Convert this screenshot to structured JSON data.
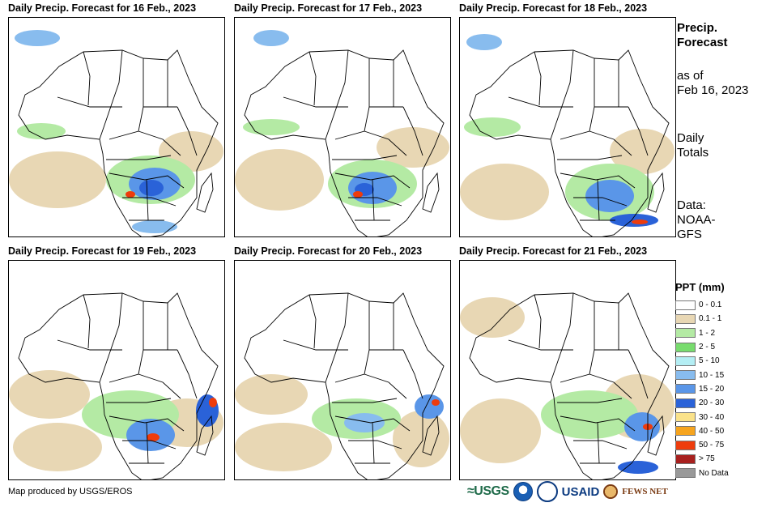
{
  "panels": [
    {
      "title": "Daily Precip. Forecast for 16 Feb., 2023"
    },
    {
      "title": "Daily Precip. Forecast for 17 Feb., 2023"
    },
    {
      "title": "Daily Precip. Forecast for 18 Feb., 2023"
    },
    {
      "title": "Daily Precip. Forecast for 19 Feb., 2023"
    },
    {
      "title": "Daily Precip. Forecast for 20 Feb., 2023"
    },
    {
      "title": "Daily Precip. Forecast for 21 Feb., 2023"
    }
  ],
  "side": {
    "title_line1": "Precip.",
    "title_line2": "Forecast",
    "asof_line1": "as of",
    "asof_line2": "Feb 16, 2023",
    "totals_line1": "Daily",
    "totals_line2": "Totals",
    "data_line1": "Data:",
    "data_line2": "NOAA-",
    "data_line3": "GFS"
  },
  "legend": {
    "title": "PPT (mm)",
    "items": [
      {
        "label": "0 - 0.1",
        "color": "#ffffff"
      },
      {
        "label": "0.1 - 1",
        "color": "#e8d7b4"
      },
      {
        "label": "1 - 2",
        "color": "#b4eaa4"
      },
      {
        "label": "2 - 5",
        "color": "#78dc6e"
      },
      {
        "label": "5 - 10",
        "color": "#b4eef4"
      },
      {
        "label": "10 - 15",
        "color": "#88bcee"
      },
      {
        "label": "15 - 20",
        "color": "#5a96e8"
      },
      {
        "label": "20 - 30",
        "color": "#2a62d8"
      },
      {
        "label": "30 - 40",
        "color": "#fae28a"
      },
      {
        "label": "40 - 50",
        "color": "#f6a41e"
      },
      {
        "label": "50 - 75",
        "color": "#ee3c0c"
      },
      {
        "label": "> 75",
        "color": "#a8201e"
      },
      {
        "label": "No Data",
        "color": "#999999"
      }
    ]
  },
  "credit": "Map produced by USGS/EROS",
  "logos": {
    "usgs": "≈USGS",
    "usaid": "USAID",
    "fews": "FEWS NET"
  }
}
